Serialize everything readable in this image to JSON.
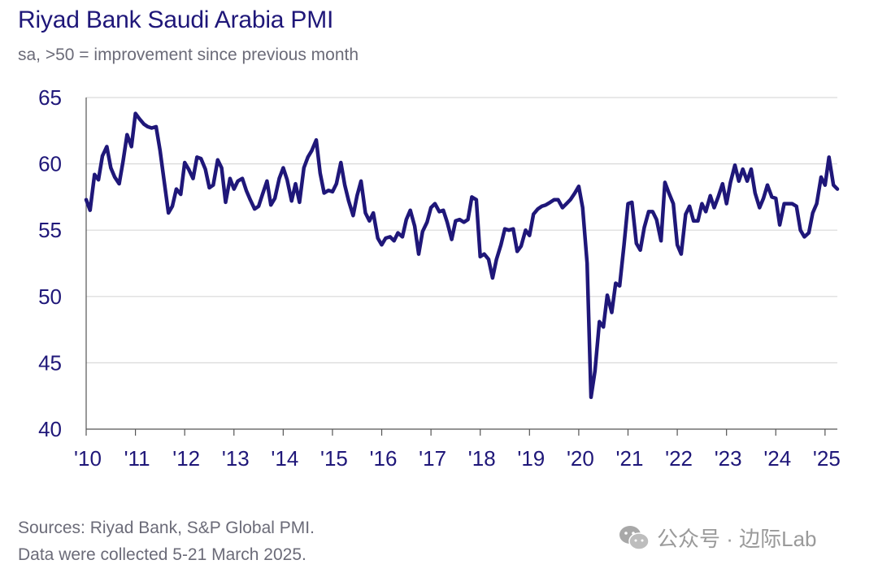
{
  "title": "Riyad Bank Saudi Arabia PMI",
  "subtitle": "sa, >50 = improvement since previous month",
  "sources": {
    "line1": "Sources: Riyad Bank, S&P Global PMI.",
    "line2": "Data were collected 5-21 March 2025."
  },
  "watermark": {
    "icon": "wechat-icon",
    "text": "公众号 · 边际Lab"
  },
  "colors": {
    "line": "#1f1779",
    "axis_text": "#1f1779",
    "grid": "#d9d9d9",
    "text_gray": "#6b6b78"
  },
  "chart_data": {
    "type": "line",
    "title": "Riyad Bank Saudi Arabia PMI",
    "subtitle": "sa, >50 = improvement since previous month",
    "xlabel": "",
    "ylabel": "",
    "ylim": [
      40,
      65
    ],
    "xlim": [
      2010.0,
      2025.25
    ],
    "yticks": [
      40,
      45,
      50,
      55,
      60,
      65
    ],
    "xticks": [
      {
        "value": 2010,
        "label": "'10"
      },
      {
        "value": 2011,
        "label": "'11"
      },
      {
        "value": 2012,
        "label": "'12"
      },
      {
        "value": 2013,
        "label": "'13"
      },
      {
        "value": 2014,
        "label": "'14"
      },
      {
        "value": 2015,
        "label": "'15"
      },
      {
        "value": 2016,
        "label": "'16"
      },
      {
        "value": 2017,
        "label": "'17"
      },
      {
        "value": 2018,
        "label": "'18"
      },
      {
        "value": 2019,
        "label": "'19"
      },
      {
        "value": 2020,
        "label": "'20"
      },
      {
        "value": 2021,
        "label": "'21"
      },
      {
        "value": 2022,
        "label": "'22"
      },
      {
        "value": 2023,
        "label": "'23"
      },
      {
        "value": 2024,
        "label": "'24"
      },
      {
        "value": 2025,
        "label": "'25"
      }
    ],
    "grid": "horizontal",
    "series": [
      {
        "name": "Saudi Arabia PMI",
        "points": [
          [
            2010.0,
            57.3
          ],
          [
            2010.08,
            56.5
          ],
          [
            2010.17,
            59.2
          ],
          [
            2010.25,
            58.8
          ],
          [
            2010.33,
            60.6
          ],
          [
            2010.42,
            61.3
          ],
          [
            2010.5,
            59.7
          ],
          [
            2010.58,
            59.0
          ],
          [
            2010.67,
            58.5
          ],
          [
            2010.75,
            60.2
          ],
          [
            2010.83,
            62.2
          ],
          [
            2010.92,
            61.3
          ],
          [
            2011.0,
            63.8
          ],
          [
            2011.08,
            63.4
          ],
          [
            2011.17,
            63.0
          ],
          [
            2011.25,
            62.8
          ],
          [
            2011.33,
            62.7
          ],
          [
            2011.42,
            62.8
          ],
          [
            2011.5,
            61.0
          ],
          [
            2011.58,
            58.8
          ],
          [
            2011.67,
            56.3
          ],
          [
            2011.75,
            56.8
          ],
          [
            2011.83,
            58.1
          ],
          [
            2011.92,
            57.7
          ],
          [
            2012.0,
            60.1
          ],
          [
            2012.08,
            59.6
          ],
          [
            2012.17,
            58.9
          ],
          [
            2012.25,
            60.5
          ],
          [
            2012.33,
            60.4
          ],
          [
            2012.42,
            59.6
          ],
          [
            2012.5,
            58.2
          ],
          [
            2012.58,
            58.4
          ],
          [
            2012.67,
            60.3
          ],
          [
            2012.75,
            59.7
          ],
          [
            2012.83,
            57.1
          ],
          [
            2012.92,
            58.9
          ],
          [
            2013.0,
            58.1
          ],
          [
            2013.08,
            58.7
          ],
          [
            2013.17,
            58.9
          ],
          [
            2013.25,
            58.0
          ],
          [
            2013.33,
            57.3
          ],
          [
            2013.42,
            56.6
          ],
          [
            2013.5,
            56.8
          ],
          [
            2013.58,
            57.7
          ],
          [
            2013.67,
            58.7
          ],
          [
            2013.75,
            56.9
          ],
          [
            2013.83,
            57.4
          ],
          [
            2013.92,
            58.9
          ],
          [
            2014.0,
            59.7
          ],
          [
            2014.08,
            58.8
          ],
          [
            2014.17,
            57.2
          ],
          [
            2014.25,
            58.5
          ],
          [
            2014.33,
            57.1
          ],
          [
            2014.42,
            59.7
          ],
          [
            2014.5,
            60.5
          ],
          [
            2014.58,
            61.0
          ],
          [
            2014.67,
            61.8
          ],
          [
            2014.75,
            59.3
          ],
          [
            2014.83,
            57.8
          ],
          [
            2014.92,
            58.0
          ],
          [
            2015.0,
            57.9
          ],
          [
            2015.08,
            58.5
          ],
          [
            2015.17,
            60.1
          ],
          [
            2015.25,
            58.4
          ],
          [
            2015.33,
            57.2
          ],
          [
            2015.42,
            56.1
          ],
          [
            2015.5,
            57.6
          ],
          [
            2015.58,
            58.7
          ],
          [
            2015.67,
            56.3
          ],
          [
            2015.75,
            55.7
          ],
          [
            2015.83,
            56.3
          ],
          [
            2015.92,
            54.4
          ],
          [
            2016.0,
            53.9
          ],
          [
            2016.08,
            54.4
          ],
          [
            2016.17,
            54.5
          ],
          [
            2016.25,
            54.2
          ],
          [
            2016.33,
            54.8
          ],
          [
            2016.42,
            54.5
          ],
          [
            2016.5,
            55.8
          ],
          [
            2016.58,
            56.5
          ],
          [
            2016.67,
            55.3
          ],
          [
            2016.75,
            53.2
          ],
          [
            2016.83,
            54.9
          ],
          [
            2016.92,
            55.6
          ],
          [
            2017.0,
            56.7
          ],
          [
            2017.08,
            57.0
          ],
          [
            2017.17,
            56.4
          ],
          [
            2017.25,
            56.5
          ],
          [
            2017.33,
            55.6
          ],
          [
            2017.42,
            54.3
          ],
          [
            2017.5,
            55.7
          ],
          [
            2017.58,
            55.8
          ],
          [
            2017.67,
            55.6
          ],
          [
            2017.75,
            55.8
          ],
          [
            2017.83,
            57.5
          ],
          [
            2017.92,
            57.3
          ],
          [
            2018.0,
            53.0
          ],
          [
            2018.08,
            53.2
          ],
          [
            2018.17,
            52.8
          ],
          [
            2018.25,
            51.4
          ],
          [
            2018.33,
            52.8
          ],
          [
            2018.42,
            53.9
          ],
          [
            2018.5,
            55.1
          ],
          [
            2018.58,
            55.0
          ],
          [
            2018.67,
            55.1
          ],
          [
            2018.75,
            53.4
          ],
          [
            2018.83,
            53.8
          ],
          [
            2018.92,
            55.0
          ],
          [
            2019.0,
            54.6
          ],
          [
            2019.08,
            56.2
          ],
          [
            2019.17,
            56.6
          ],
          [
            2019.25,
            56.8
          ],
          [
            2019.33,
            56.9
          ],
          [
            2019.42,
            57.1
          ],
          [
            2019.5,
            57.3
          ],
          [
            2019.58,
            57.3
          ],
          [
            2019.67,
            56.7
          ],
          [
            2019.75,
            57.0
          ],
          [
            2019.83,
            57.3
          ],
          [
            2019.92,
            57.8
          ],
          [
            2020.0,
            58.3
          ],
          [
            2020.08,
            56.7
          ],
          [
            2020.17,
            52.5
          ],
          [
            2020.25,
            42.4
          ],
          [
            2020.33,
            44.4
          ],
          [
            2020.42,
            48.1
          ],
          [
            2020.5,
            47.7
          ],
          [
            2020.58,
            50.1
          ],
          [
            2020.67,
            48.8
          ],
          [
            2020.75,
            51.0
          ],
          [
            2020.83,
            50.8
          ],
          [
            2020.92,
            53.9
          ],
          [
            2021.0,
            57.0
          ],
          [
            2021.08,
            57.1
          ],
          [
            2021.17,
            54.0
          ],
          [
            2021.25,
            53.5
          ],
          [
            2021.33,
            55.2
          ],
          [
            2021.42,
            56.4
          ],
          [
            2021.5,
            56.4
          ],
          [
            2021.58,
            55.8
          ],
          [
            2021.67,
            54.2
          ],
          [
            2021.75,
            58.6
          ],
          [
            2021.83,
            57.8
          ],
          [
            2021.92,
            57.0
          ],
          [
            2022.0,
            53.9
          ],
          [
            2022.08,
            53.2
          ],
          [
            2022.17,
            56.2
          ],
          [
            2022.25,
            56.8
          ],
          [
            2022.33,
            55.7
          ],
          [
            2022.42,
            55.7
          ],
          [
            2022.5,
            57.0
          ],
          [
            2022.58,
            56.4
          ],
          [
            2022.67,
            57.6
          ],
          [
            2022.75,
            56.7
          ],
          [
            2022.83,
            57.5
          ],
          [
            2022.92,
            58.5
          ],
          [
            2023.0,
            57.0
          ],
          [
            2023.08,
            58.6
          ],
          [
            2023.17,
            59.9
          ],
          [
            2023.25,
            58.7
          ],
          [
            2023.33,
            59.6
          ],
          [
            2023.42,
            58.7
          ],
          [
            2023.5,
            59.6
          ],
          [
            2023.58,
            57.8
          ],
          [
            2023.67,
            56.7
          ],
          [
            2023.75,
            57.4
          ],
          [
            2023.83,
            58.4
          ],
          [
            2023.92,
            57.5
          ],
          [
            2024.0,
            57.4
          ],
          [
            2024.08,
            55.4
          ],
          [
            2024.17,
            57.0
          ],
          [
            2024.25,
            57.0
          ],
          [
            2024.33,
            57.0
          ],
          [
            2024.42,
            56.8
          ],
          [
            2024.5,
            55.0
          ],
          [
            2024.58,
            54.5
          ],
          [
            2024.67,
            54.8
          ],
          [
            2024.75,
            56.3
          ],
          [
            2024.83,
            57.0
          ],
          [
            2024.92,
            59.0
          ],
          [
            2025.0,
            58.4
          ],
          [
            2025.08,
            60.5
          ],
          [
            2025.17,
            58.4
          ],
          [
            2025.25,
            58.1
          ]
        ]
      }
    ]
  }
}
